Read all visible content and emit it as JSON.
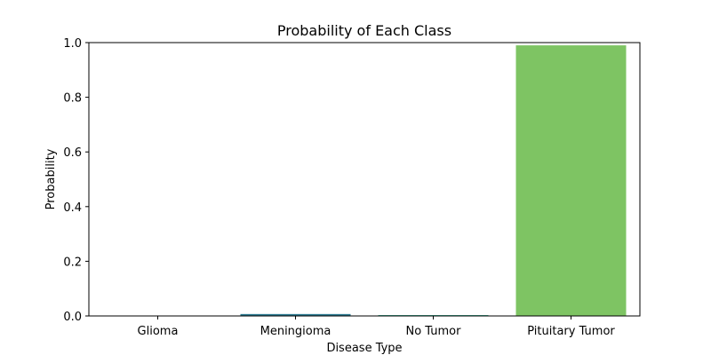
{
  "chart_data": {
    "type": "bar",
    "title": "Probability of Each Class",
    "xlabel": "Disease Type",
    "ylabel": "Probability",
    "categories": [
      "Glioma",
      "Meningioma",
      "No Tumor",
      "Pituitary Tumor"
    ],
    "values": [
      0.0005,
      0.007,
      0.003,
      0.99
    ],
    "colors": [
      "#440154",
      "#2a788e",
      "#22a884",
      "#7ec463"
    ],
    "ylim": [
      0,
      1.0
    ],
    "yticks": [
      "0.0",
      "0.2",
      "0.4",
      "0.6",
      "0.8",
      "1.0"
    ],
    "grid": false,
    "legend": "none"
  }
}
